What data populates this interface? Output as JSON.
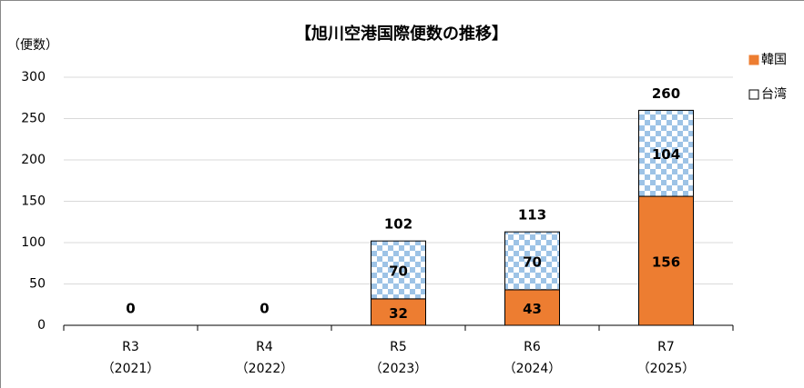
{
  "chart_data": {
    "type": "stacked_bar",
    "title": "【旭川空港国際便数の推移】",
    "y_label": "（便数）",
    "categories": [
      "R3",
      "R4",
      "R5",
      "R6",
      "R7"
    ],
    "category_years": [
      "（2021）",
      "（2022）",
      "（2023）",
      "（2024）",
      "（2025）"
    ],
    "series": [
      {
        "name": "韓国",
        "color": "#ED7D31",
        "values": [
          0,
          0,
          32,
          43,
          156
        ]
      },
      {
        "name": "台湾",
        "color": "#9DC3E6",
        "values": [
          0,
          0,
          70,
          70,
          104
        ]
      }
    ],
    "totals": [
      0,
      0,
      102,
      113,
      260
    ],
    "ylim": [
      0,
      300
    ],
    "yticks": [
      0,
      50,
      100,
      150,
      200,
      250,
      300
    ],
    "grid": true,
    "legend": "right"
  }
}
